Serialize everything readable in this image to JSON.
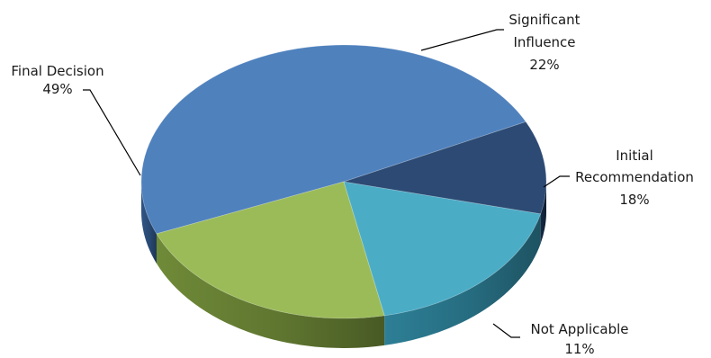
{
  "chart_data": {
    "type": "pie",
    "style": "3d",
    "categories": [
      "Final Decision",
      "Significant Influence",
      "Initial Recommendation",
      "Not Applicable"
    ],
    "values": [
      49,
      22,
      18,
      11
    ],
    "value_labels": [
      "49%",
      "22%",
      "18%",
      "11%"
    ],
    "label_lines": [
      [
        "Final Decision"
      ],
      [
        "Significant",
        "Influence"
      ],
      [
        "Initial",
        "Recommendation"
      ],
      [
        "Not Applicable"
      ]
    ],
    "colors": [
      "#4f81bd",
      "#9bbb59",
      "#4bacc6",
      "#2c4a73"
    ],
    "side_colors": [
      "#2f5586",
      "#6f8a38",
      "#2d7f96",
      "#162a45"
    ],
    "title": "",
    "legend": "none"
  }
}
